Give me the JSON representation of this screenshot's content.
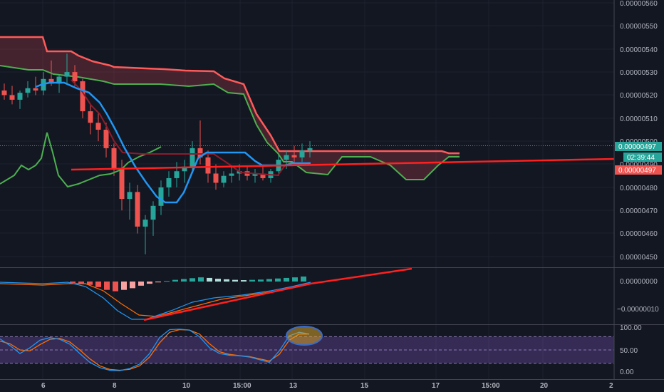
{
  "colors": {
    "background": "#131722",
    "grid": "#1e222d",
    "up": "#26a69a",
    "down": "#ef5350",
    "conversion": "#2196f3",
    "base": "#8e1b2b",
    "lagging": "#4caf50",
    "span_a": "#ff5a5a",
    "span_b": "#4caf50",
    "trendline": "#ff2020",
    "macd_line": "#2196f3",
    "signal_line": "#ff6d00",
    "stoch_k": "#2196f3",
    "stoch_d": "#ff6d00",
    "stoch_band": "#7e57c2",
    "price_badge": "#ef5350",
    "last_badge": "#26a69a"
  },
  "price_axis": {
    "ticks": [
      "0.00000560",
      "0.00000550",
      "0.00000540",
      "0.00000530",
      "0.00000520",
      "0.00000510",
      "0.00000500",
      "0.00000490",
      "0.00000480",
      "0.00000470",
      "0.00000460",
      "0.00000450"
    ],
    "last_price": "0.00000497",
    "countdown": "02:39:44",
    "close_price": "0.00000497"
  },
  "macd_axis": {
    "ticks": [
      "0.00000000",
      "−0.00000010"
    ]
  },
  "stoch_axis": {
    "ticks": [
      "100.00",
      "50.00",
      "0.00"
    ]
  },
  "time_axis": {
    "ticks": [
      "6",
      "8",
      "10",
      "15:00",
      "13",
      "15",
      "17",
      "15:00",
      "20",
      "2"
    ]
  },
  "chart_data": [
    {
      "type": "candlestick",
      "title": "",
      "ylim": [
        4.445e-06,
        5.61e-06
      ],
      "candles": [
        [
          0,
          5.22e-06,
          5.25e-06,
          5.18e-06,
          5.2e-06
        ],
        [
          1,
          5.2e-06,
          5.24e-06,
          5.16e-06,
          5.18e-06
        ],
        [
          2,
          5.18e-06,
          5.22e-06,
          5.14e-06,
          5.21e-06
        ],
        [
          3,
          5.21e-06,
          5.26e-06,
          5.19e-06,
          5.23e-06
        ],
        [
          4,
          5.23e-06,
          5.28e-06,
          5.2e-06,
          5.22e-06
        ],
        [
          5,
          5.22e-06,
          5.3e-06,
          5.2e-06,
          5.27e-06
        ],
        [
          6,
          5.27e-06,
          5.35e-06,
          5.24e-06,
          5.25e-06
        ],
        [
          7,
          5.25e-06,
          5.29e-06,
          5.21e-06,
          5.28e-06
        ],
        [
          8,
          5.28e-06,
          5.38e-06,
          5.25e-06,
          5.3e-06
        ],
        [
          9,
          5.3e-06,
          5.33e-06,
          5.24e-06,
          5.26e-06
        ],
        [
          10,
          5.26e-06,
          5.27e-06,
          5.1e-06,
          5.13e-06
        ],
        [
          11,
          5.13e-06,
          5.16e-06,
          5.03e-06,
          5.08e-06
        ],
        [
          12,
          5.08e-06,
          5.12e-06,
          5e-06,
          5.05e-06
        ],
        [
          13,
          5.05e-06,
          5.08e-06,
          4.93e-06,
          4.97e-06
        ],
        [
          14,
          4.97e-06,
          4.99e-06,
          4.85e-06,
          4.88e-06
        ],
        [
          15,
          4.88e-06,
          4.92e-06,
          4.7e-06,
          4.75e-06
        ],
        [
          16,
          4.75e-06,
          4.82e-06,
          4.66e-06,
          4.78e-06
        ],
        [
          17,
          4.78e-06,
          4.81e-06,
          4.6e-06,
          4.63e-06
        ],
        [
          18,
          4.63e-06,
          4.68e-06,
          4.51e-06,
          4.66e-06
        ],
        [
          19,
          4.66e-06,
          4.74e-06,
          4.59e-06,
          4.72e-06
        ],
        [
          20,
          4.72e-06,
          4.83e-06,
          4.68e-06,
          4.8e-06
        ],
        [
          21,
          4.8e-06,
          4.87e-06,
          4.76e-06,
          4.84e-06
        ],
        [
          22,
          4.84e-06,
          4.91e-06,
          4.8e-06,
          4.87e-06
        ],
        [
          23,
          4.87e-06,
          4.92e-06,
          4.82e-06,
          4.89e-06
        ],
        [
          24,
          4.89e-06,
          5e-06,
          4.86e-06,
          4.97e-06
        ],
        [
          25,
          4.97e-06,
          5.09e-06,
          4.9e-06,
          4.93e-06
        ],
        [
          26,
          4.93e-06,
          4.96e-06,
          4.82e-06,
          4.86e-06
        ],
        [
          27,
          4.86e-06,
          4.9e-06,
          4.79e-06,
          4.82e-06
        ],
        [
          28,
          4.82e-06,
          4.87e-06,
          4.8e-06,
          4.85e-06
        ],
        [
          29,
          4.85e-06,
          4.89e-06,
          4.82e-06,
          4.86e-06
        ],
        [
          30,
          4.86e-06,
          4.9e-06,
          4.83e-06,
          4.87e-06
        ],
        [
          31,
          4.87e-06,
          4.89e-06,
          4.83e-06,
          4.85e-06
        ],
        [
          32,
          4.85e-06,
          4.88e-06,
          4.82e-06,
          4.86e-06
        ],
        [
          33,
          4.86e-06,
          4.89e-06,
          4.83e-06,
          4.84e-06
        ],
        [
          34,
          4.84e-06,
          4.88e-06,
          4.82e-06,
          4.87e-06
        ],
        [
          35,
          4.87e-06,
          4.94e-06,
          4.85e-06,
          4.92e-06
        ],
        [
          36,
          4.92e-06,
          4.96e-06,
          4.88e-06,
          4.94e-06
        ],
        [
          37,
          4.94e-06,
          4.98e-06,
          4.9e-06,
          4.93e-06
        ],
        [
          38,
          4.93e-06,
          4.99e-06,
          4.91e-06,
          4.96e-06
        ],
        [
          39,
          4.96e-06,
          5e-06,
          4.93e-06,
          4.97e-06
        ]
      ]
    },
    {
      "type": "histogram",
      "title": "",
      "ylim": [
        -1.4e-07,
        3e-08
      ],
      "values": [
        -5e-09,
        -8e-09,
        -1.2e-08,
        -2e-08,
        -3e-08,
        -3.5e-08,
        -3e-08,
        -2.4e-08,
        -1.5e-08,
        -8e-09,
        -3e-09,
        2e-09,
        6e-09,
        9e-09,
        1.2e-08,
        1.5e-08,
        1.3e-08,
        1e-08,
        8e-09,
        6e-09,
        5e-09,
        6e-09,
        7e-09,
        9e-09,
        1.1e-08,
        1.3e-08,
        1.5e-08,
        1.8e-08
      ]
    },
    {
      "type": "line",
      "title": "",
      "ylim": [
        0,
        100
      ],
      "band": [
        20,
        80
      ],
      "series": [
        {
          "values": [
            75,
            60,
            42,
            55,
            72,
            78,
            74,
            63,
            42,
            22,
            10,
            4,
            3,
            8,
            18,
            42,
            78,
            96,
            97,
            95,
            80,
            55,
            42,
            38,
            37,
            34,
            28,
            22,
            48,
            82,
            90,
            86
          ]
        },
        {
          "values": [
            70,
            64,
            50,
            48,
            62,
            74,
            76,
            68,
            50,
            30,
            14,
            6,
            4,
            6,
            14,
            34,
            66,
            90,
            96,
            95,
            86,
            64,
            46,
            40,
            37,
            35,
            30,
            25,
            40,
            72,
            86,
            86
          ]
        }
      ]
    }
  ]
}
